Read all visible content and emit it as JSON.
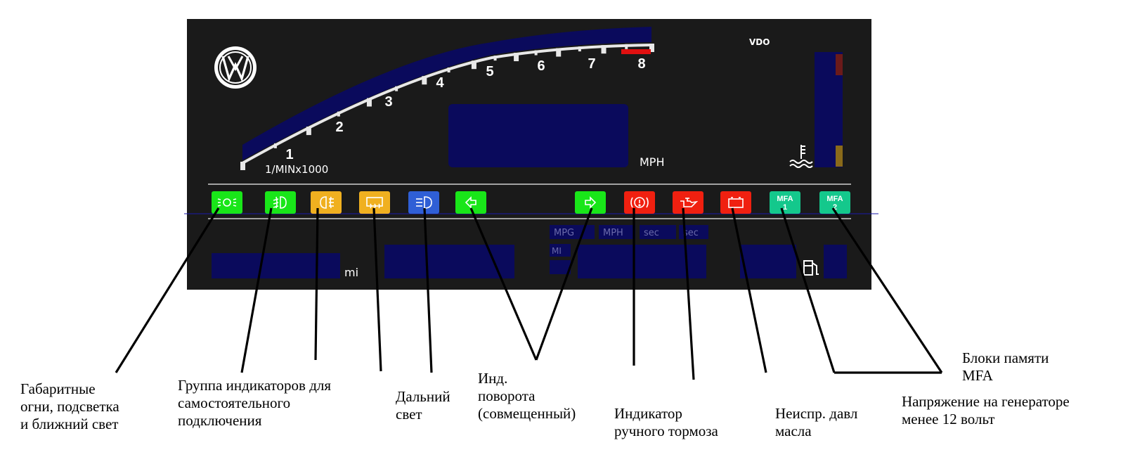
{
  "panel": {
    "brand": "VDO",
    "tach_unit": "1/MINx1000",
    "tach_numbers": [
      "1",
      "2",
      "3",
      "4",
      "5",
      "6",
      "7",
      "8"
    ],
    "speed_unit": "MPH",
    "odometer_unit": "mi",
    "mfa_labels": [
      "MPG",
      "MPH",
      "sec",
      "sec"
    ],
    "mfa_mi": "MI"
  },
  "indicators": [
    {
      "name": "parking-lights-indicator",
      "icon": "parking-lights-icon",
      "color": "#19e619"
    },
    {
      "name": "fog-light-indicator",
      "icon": "fog-light-icon",
      "color": "#19e619"
    },
    {
      "name": "rear-fog-indicator",
      "icon": "rear-fog-icon",
      "color": "#f0b020"
    },
    {
      "name": "rear-defrost-indicator",
      "icon": "rear-defrost-icon",
      "color": "#f0b020"
    },
    {
      "name": "high-beam-indicator",
      "icon": "high-beam-icon",
      "color": "#2f5fd6"
    },
    {
      "name": "turn-left-indicator",
      "icon": "arrow-left-icon",
      "color": "#19e619"
    },
    {
      "name": "turn-right-indicator",
      "icon": "arrow-right-icon",
      "color": "#19e619"
    },
    {
      "name": "brake-indicator",
      "icon": "brake-warning-icon",
      "color": "#f02010"
    },
    {
      "name": "oil-pressure-indicator",
      "icon": "oil-can-icon",
      "color": "#f02010"
    },
    {
      "name": "battery-indicator",
      "icon": "battery-icon",
      "color": "#f02010"
    },
    {
      "name": "mfa-1-indicator",
      "icon": "mfa-1-icon",
      "color": "#14c88c",
      "text": [
        "MFA",
        "1"
      ]
    },
    {
      "name": "mfa-2-indicator",
      "icon": "mfa-2-icon",
      "color": "#14c88c",
      "text": [
        "MFA",
        "2"
      ]
    }
  ],
  "labels": {
    "parking": [
      "Габаритные",
      "огни, подсветка",
      "и ближний свет"
    ],
    "group": [
      "Группа индикаторов для",
      "самостоятельного",
      "подключения"
    ],
    "high_beam": [
      "Дальний",
      "свет"
    ],
    "turn": [
      "Инд.",
      "поворота",
      "(совмещенный)"
    ],
    "handbrake": [
      "Индикатор",
      "ручного тормоза"
    ],
    "oil": [
      "Неиспр. давл",
      "масла"
    ],
    "mfa_memory": [
      "Блоки памяти",
      "MFA"
    ],
    "voltage": [
      "Напряжение на генераторе",
      "менее 12 вольт"
    ]
  }
}
